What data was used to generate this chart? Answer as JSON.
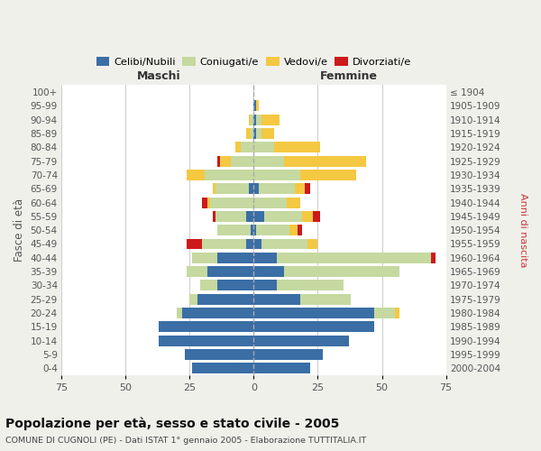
{
  "age_groups": [
    "0-4",
    "5-9",
    "10-14",
    "15-19",
    "20-24",
    "25-29",
    "30-34",
    "35-39",
    "40-44",
    "45-49",
    "50-54",
    "55-59",
    "60-64",
    "65-69",
    "70-74",
    "75-79",
    "80-84",
    "85-89",
    "90-94",
    "95-99",
    "100+"
  ],
  "birth_years": [
    "2000-2004",
    "1995-1999",
    "1990-1994",
    "1985-1989",
    "1980-1984",
    "1975-1979",
    "1970-1974",
    "1965-1969",
    "1960-1964",
    "1955-1959",
    "1950-1954",
    "1945-1949",
    "1940-1944",
    "1935-1939",
    "1930-1934",
    "1925-1929",
    "1920-1924",
    "1915-1919",
    "1910-1914",
    "1905-1909",
    "≤ 1904"
  ],
  "male": {
    "celibe": [
      24,
      27,
      37,
      37,
      28,
      22,
      14,
      18,
      14,
      3,
      1,
      3,
      0,
      2,
      0,
      0,
      0,
      0,
      0,
      0,
      0
    ],
    "coniugato": [
      0,
      0,
      0,
      0,
      2,
      3,
      7,
      8,
      10,
      17,
      13,
      12,
      17,
      13,
      19,
      9,
      5,
      1,
      1,
      0,
      0
    ],
    "vedovo": [
      0,
      0,
      0,
      0,
      0,
      0,
      0,
      0,
      0,
      0,
      0,
      0,
      1,
      1,
      7,
      4,
      2,
      2,
      1,
      0,
      0
    ],
    "divorziato": [
      0,
      0,
      0,
      0,
      0,
      0,
      0,
      0,
      0,
      6,
      0,
      1,
      2,
      0,
      0,
      1,
      0,
      0,
      0,
      0,
      0
    ]
  },
  "female": {
    "nubile": [
      22,
      27,
      37,
      47,
      47,
      18,
      9,
      12,
      9,
      3,
      1,
      4,
      0,
      2,
      0,
      0,
      0,
      1,
      1,
      1,
      0
    ],
    "coniugata": [
      0,
      0,
      0,
      0,
      8,
      20,
      26,
      45,
      60,
      18,
      13,
      15,
      13,
      14,
      18,
      12,
      8,
      2,
      2,
      0,
      0
    ],
    "vedova": [
      0,
      0,
      0,
      0,
      2,
      0,
      0,
      0,
      0,
      4,
      3,
      4,
      5,
      4,
      22,
      32,
      18,
      5,
      7,
      1,
      0
    ],
    "divorziata": [
      0,
      0,
      0,
      0,
      0,
      0,
      0,
      0,
      2,
      0,
      2,
      3,
      0,
      2,
      0,
      0,
      0,
      0,
      0,
      0,
      0
    ]
  },
  "colors": {
    "celibe_nubile": "#3a6ea5",
    "coniugato": "#c5d9a0",
    "vedovo": "#f5c842",
    "divorziato": "#cc1a1a"
  },
  "xlim": 75,
  "title": "Popolazione per età, sesso e stato civile - 2005",
  "subtitle": "COMUNE DI CUGNOLI (PE) - Dati ISTAT 1° gennaio 2005 - Elaborazione TUTTITALIA.IT",
  "xlabel_left": "Maschi",
  "xlabel_right": "Femmine",
  "ylabel_left": "Fasce di età",
  "ylabel_right": "Anni di nascita",
  "bg_color": "#f0f0eb",
  "plot_bg": "#ffffff",
  "grid_color": "#cccccc"
}
